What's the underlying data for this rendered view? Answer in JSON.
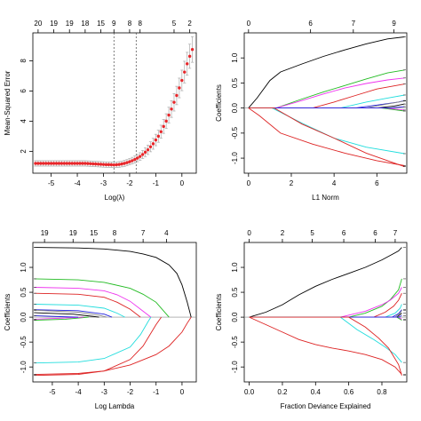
{
  "figure": {
    "background": "#ffffff"
  },
  "chart_data": [
    {
      "id": "cv",
      "type": "scatter",
      "xlabel": "Log(λ)",
      "ylabel": "Mean-Squared Error",
      "xlim": [
        -5.7,
        0.55
      ],
      "ylim": [
        0.55,
        9.85
      ],
      "xticks": [
        -5,
        -4,
        -3,
        -2,
        -1,
        0
      ],
      "yticks": [
        2,
        4,
        6,
        8
      ],
      "top_axis": {
        "positions": [
          -5.5,
          -4.9,
          -4.3,
          -3.7,
          -3.1,
          -2.6,
          -2.0,
          -1.6,
          -0.3,
          0.3
        ],
        "labels": [
          "20",
          "19",
          "19",
          "18",
          "15",
          "9",
          "8",
          "8",
          "5",
          "2"
        ]
      },
      "vlines": [
        -2.6,
        -1.75
      ],
      "point_color": "#e8262a",
      "errorbar_color": "#aaaaaa",
      "x": [
        -5.6,
        -5.5,
        -5.4,
        -5.3,
        -5.2,
        -5.1,
        -5.0,
        -4.9,
        -4.8,
        -4.7,
        -4.6,
        -4.5,
        -4.4,
        -4.3,
        -4.2,
        -4.1,
        -4.0,
        -3.9,
        -3.8,
        -3.7,
        -3.6,
        -3.5,
        -3.4,
        -3.3,
        -3.2,
        -3.1,
        -3.0,
        -2.9,
        -2.8,
        -2.7,
        -2.6,
        -2.5,
        -2.4,
        -2.3,
        -2.2,
        -2.1,
        -2.0,
        -1.9,
        -1.8,
        -1.7,
        -1.6,
        -1.5,
        -1.4,
        -1.3,
        -1.2,
        -1.1,
        -1.0,
        -0.9,
        -0.8,
        -0.7,
        -0.6,
        -0.5,
        -0.4,
        -0.3,
        -0.2,
        -0.1,
        0.0,
        0.1,
        0.2,
        0.3,
        0.4
      ],
      "y": [
        1.2,
        1.2,
        1.2,
        1.2,
        1.2,
        1.2,
        1.2,
        1.2,
        1.2,
        1.2,
        1.2,
        1.2,
        1.2,
        1.2,
        1.2,
        1.2,
        1.2,
        1.2,
        1.2,
        1.2,
        1.19,
        1.18,
        1.17,
        1.16,
        1.15,
        1.14,
        1.13,
        1.12,
        1.12,
        1.11,
        1.1,
        1.11,
        1.13,
        1.16,
        1.2,
        1.25,
        1.31,
        1.38,
        1.46,
        1.55,
        1.66,
        1.79,
        1.94,
        2.1,
        2.3,
        2.5,
        2.75,
        3.0,
        3.3,
        3.65,
        4.0,
        4.4,
        4.8,
        5.25,
        5.7,
        6.2,
        6.7,
        7.25,
        7.8,
        8.3,
        8.75
      ],
      "err": [
        0.18,
        0.18,
        0.18,
        0.18,
        0.18,
        0.18,
        0.18,
        0.18,
        0.18,
        0.18,
        0.18,
        0.18,
        0.18,
        0.18,
        0.18,
        0.18,
        0.18,
        0.18,
        0.18,
        0.18,
        0.18,
        0.18,
        0.18,
        0.18,
        0.18,
        0.18,
        0.18,
        0.18,
        0.18,
        0.18,
        0.18,
        0.18,
        0.19,
        0.19,
        0.2,
        0.2,
        0.21,
        0.22,
        0.23,
        0.24,
        0.25,
        0.27,
        0.29,
        0.31,
        0.33,
        0.36,
        0.38,
        0.4,
        0.43,
        0.46,
        0.49,
        0.52,
        0.55,
        0.58,
        0.61,
        0.65,
        0.68,
        0.72,
        0.76,
        0.8,
        0.85
      ]
    },
    {
      "id": "l1",
      "type": "line",
      "xlabel": "L1 Norm",
      "ylabel": "Coefficients",
      "xlim": [
        -0.2,
        7.4
      ],
      "ylim": [
        -1.3,
        1.5
      ],
      "xticks": [
        0,
        2,
        4,
        6
      ],
      "yticks": [
        -1.0,
        -0.5,
        0.0,
        0.5,
        1.0
      ],
      "ytick_labels": [
        "-1.0",
        "-0.5",
        "0.0",
        "0.5",
        "1.0"
      ],
      "top_axis": {
        "positions": [
          0,
          2.9,
          4.9,
          6.8
        ],
        "labels": [
          "0",
          "6",
          "7",
          "9"
        ]
      },
      "series": [
        {
          "color": "#000000",
          "x": [
            0,
            0.4,
            1.0,
            1.5,
            2.5,
            3.5,
            4.5,
            5.5,
            6.5,
            7.3
          ],
          "values": [
            0,
            0.2,
            0.55,
            0.72,
            0.88,
            1.03,
            1.16,
            1.28,
            1.38,
            1.42
          ]
        },
        {
          "color": "#22bb22",
          "x": [
            0,
            1.3,
            2.5,
            3.5,
            4.5,
            5.5,
            6.5,
            7.3
          ],
          "values": [
            0,
            0,
            0.18,
            0.32,
            0.45,
            0.58,
            0.7,
            0.76
          ]
        },
        {
          "color": "#ee33ee",
          "x": [
            0,
            1.3,
            2.5,
            3.5,
            4.5,
            5.5,
            6.5,
            7.3
          ],
          "values": [
            0,
            0,
            0.15,
            0.28,
            0.4,
            0.49,
            0.56,
            0.6
          ]
        },
        {
          "color": "#dd2222",
          "x": [
            0,
            3.0,
            4.0,
            5.0,
            6.0,
            7.3
          ],
          "values": [
            0,
            0,
            0.12,
            0.25,
            0.38,
            0.48
          ]
        },
        {
          "color": "#22dddd",
          "x": [
            0,
            4.3,
            5.5,
            6.5,
            7.3
          ],
          "values": [
            0,
            0,
            0.12,
            0.2,
            0.26
          ]
        },
        {
          "color": "#2222dd",
          "x": [
            0,
            5.0,
            6.0,
            7.0,
            7.3
          ],
          "values": [
            0,
            0,
            0.06,
            0.12,
            0.15
          ]
        },
        {
          "color": "#888888",
          "x": [
            0,
            5.5,
            6.5,
            7.3
          ],
          "values": [
            0,
            0,
            0.08,
            0.14
          ]
        },
        {
          "color": "#000000",
          "x": [
            0,
            6.0,
            6.8,
            7.3
          ],
          "values": [
            0,
            0,
            0.04,
            0.08
          ]
        },
        {
          "color": "#22bb22",
          "x": [
            0,
            6.2,
            7.3
          ],
          "values": [
            0,
            0,
            -0.06
          ]
        },
        {
          "color": "#ee33ee",
          "x": [
            0,
            6.4,
            7.3
          ],
          "values": [
            0,
            0,
            -0.04
          ]
        },
        {
          "color": "#2222dd",
          "x": [
            0,
            6.6,
            7.3
          ],
          "values": [
            0,
            0,
            0.03
          ]
        },
        {
          "color": "#22dddd",
          "x": [
            0,
            1.1,
            2.5,
            4.0,
            5.5,
            7.3
          ],
          "values": [
            0,
            0,
            -0.3,
            -0.6,
            -0.78,
            -0.91
          ]
        },
        {
          "color": "#dd2222",
          "x": [
            0,
            1.2,
            2.5,
            4.0,
            5.5,
            7.3
          ],
          "values": [
            0,
            0,
            -0.32,
            -0.6,
            -0.9,
            -1.17
          ]
        },
        {
          "color": "#dd2222",
          "x": [
            0,
            0.5,
            1.5,
            3.0,
            4.5,
            6.0,
            7.3
          ],
          "values": [
            0,
            -0.15,
            -0.5,
            -0.72,
            -0.9,
            -1.05,
            -1.15
          ]
        }
      ]
    },
    {
      "id": "lambda",
      "type": "line",
      "xlabel": "Log Lambda",
      "ylabel": "Coefficients",
      "xlim": [
        -5.75,
        0.55
      ],
      "ylim": [
        -1.3,
        1.5
      ],
      "xticks": [
        -5,
        -4,
        -3,
        -2,
        -1,
        0
      ],
      "yticks": [
        -1.0,
        -0.5,
        0.0,
        0.5,
        1.0
      ],
      "ytick_labels": [
        "-1.0",
        "-0.5",
        "0.0",
        "0.5",
        "1.0"
      ],
      "top_axis": {
        "positions": [
          -5.3,
          -4.2,
          -3.4,
          -2.6,
          -1.5,
          -0.6
        ],
        "labels": [
          "19",
          "19",
          "15",
          "8",
          "7",
          "4"
        ]
      },
      "series": [
        {
          "color": "#000000",
          "x": [
            -5.7,
            -4,
            -3,
            -2,
            -1.5,
            -1,
            -0.5,
            -0.2,
            0,
            0.2,
            0.35
          ],
          "values": [
            1.4,
            1.39,
            1.37,
            1.32,
            1.27,
            1.2,
            1.05,
            0.88,
            0.65,
            0.3,
            0
          ]
        },
        {
          "color": "#22bb22",
          "x": [
            -5.7,
            -4,
            -3,
            -2,
            -1.5,
            -1,
            -0.7,
            -0.5
          ],
          "values": [
            0.77,
            0.75,
            0.7,
            0.58,
            0.46,
            0.3,
            0.12,
            0
          ]
        },
        {
          "color": "#ee33ee",
          "x": [
            -5.7,
            -4,
            -3,
            -2.5,
            -2,
            -1.5,
            -1.2
          ],
          "values": [
            0.6,
            0.58,
            0.53,
            0.45,
            0.32,
            0.12,
            0
          ]
        },
        {
          "color": "#dd2222",
          "x": [
            -5.7,
            -4,
            -3,
            -2.5,
            -2,
            -1.6
          ],
          "values": [
            0.48,
            0.46,
            0.4,
            0.3,
            0.16,
            0
          ]
        },
        {
          "color": "#22dddd",
          "x": [
            -5.7,
            -4,
            -3,
            -2.5,
            -2.2
          ],
          "values": [
            0.26,
            0.24,
            0.18,
            0.08,
            0
          ]
        },
        {
          "color": "#2222dd",
          "x": [
            -5.7,
            -4,
            -3,
            -2.7
          ],
          "values": [
            0.15,
            0.13,
            0.06,
            0
          ]
        },
        {
          "color": "#888888",
          "x": [
            -5.7,
            -4,
            -3.2,
            -2.9
          ],
          "values": [
            0.14,
            0.1,
            0.04,
            0
          ]
        },
        {
          "color": "#000000",
          "x": [
            -5.7,
            -4.2,
            -3.5,
            -3.2
          ],
          "values": [
            0.09,
            0.06,
            0.02,
            0
          ]
        },
        {
          "color": "#22bb22",
          "x": [
            -5.7,
            -4.5,
            -3.6
          ],
          "values": [
            -0.06,
            -0.04,
            0
          ]
        },
        {
          "color": "#ee33ee",
          "x": [
            -5.7,
            -4.6,
            -3.8
          ],
          "values": [
            -0.04,
            -0.02,
            0
          ]
        },
        {
          "color": "#2222dd",
          "x": [
            -5.7,
            -4.7,
            -4.0
          ],
          "values": [
            0.03,
            0.01,
            0
          ]
        },
        {
          "color": "#22dddd",
          "x": [
            -5.7,
            -4,
            -3,
            -2,
            -1.6,
            -1.3,
            -1.2
          ],
          "values": [
            -0.92,
            -0.9,
            -0.83,
            -0.6,
            -0.35,
            -0.08,
            0
          ]
        },
        {
          "color": "#dd2222",
          "x": [
            -5.7,
            -4,
            -3,
            -2,
            -1.5,
            -1.0,
            -0.8
          ],
          "values": [
            -1.17,
            -1.15,
            -1.08,
            -0.85,
            -0.58,
            -0.15,
            0
          ]
        },
        {
          "color": "#dd2222",
          "x": [
            -5.7,
            -4,
            -3,
            -2,
            -1,
            -0.5,
            0,
            0.2,
            0.35
          ],
          "values": [
            -1.15,
            -1.13,
            -1.08,
            -0.96,
            -0.75,
            -0.58,
            -0.3,
            -0.12,
            0
          ]
        }
      ]
    },
    {
      "id": "dev",
      "type": "line",
      "xlabel": "Fraction Deviance Explained",
      "ylabel": "Coefficients",
      "xlim": [
        -0.03,
        0.95
      ],
      "ylim": [
        -1.3,
        1.5
      ],
      "xticks": [
        0.0,
        0.2,
        0.4,
        0.6,
        0.8
      ],
      "xtick_labels": [
        "0.0",
        "0.2",
        "0.4",
        "0.6",
        "0.8"
      ],
      "yticks": [
        -1.0,
        -0.5,
        0.0,
        0.5,
        1.0
      ],
      "ytick_labels": [
        "-1.0",
        "-0.5",
        "0.0",
        "0.5",
        "1.0"
      ],
      "top_axis": {
        "positions": [
          0.0,
          0.2,
          0.38,
          0.57,
          0.76,
          0.88
        ],
        "labels": [
          "0",
          "2",
          "5",
          "6",
          "6",
          "7"
        ]
      },
      "series": [
        {
          "color": "#000000",
          "x": [
            0,
            0.1,
            0.2,
            0.3,
            0.4,
            0.5,
            0.6,
            0.7,
            0.8,
            0.85,
            0.9,
            0.92
          ],
          "values": [
            0,
            0.1,
            0.25,
            0.45,
            0.62,
            0.76,
            0.88,
            1.0,
            1.15,
            1.24,
            1.33,
            1.4
          ]
        },
        {
          "color": "#22bb22",
          "x": [
            0,
            0.6,
            0.7,
            0.8,
            0.85,
            0.9,
            0.92
          ],
          "values": [
            0,
            0,
            0.08,
            0.22,
            0.35,
            0.55,
            0.77
          ]
        },
        {
          "color": "#ee33ee",
          "x": [
            0,
            0.55,
            0.7,
            0.8,
            0.85,
            0.9,
            0.92
          ],
          "values": [
            0,
            0,
            0.12,
            0.25,
            0.34,
            0.48,
            0.6
          ]
        },
        {
          "color": "#dd2222",
          "x": [
            0,
            0.75,
            0.82,
            0.87,
            0.9,
            0.92
          ],
          "values": [
            0,
            0,
            0.1,
            0.22,
            0.34,
            0.48
          ]
        },
        {
          "color": "#22dddd",
          "x": [
            0,
            0.82,
            0.88,
            0.91,
            0.92
          ],
          "values": [
            0,
            0,
            0.08,
            0.18,
            0.26
          ]
        },
        {
          "color": "#2222dd",
          "x": [
            0,
            0.86,
            0.9,
            0.92
          ],
          "values": [
            0,
            0,
            0.07,
            0.15
          ]
        },
        {
          "color": "#888888",
          "x": [
            0,
            0.88,
            0.91,
            0.92
          ],
          "values": [
            0,
            0,
            0.08,
            0.14
          ]
        },
        {
          "color": "#000000",
          "x": [
            0,
            0.89,
            0.92
          ],
          "values": [
            0,
            0,
            0.08
          ]
        },
        {
          "color": "#22bb22",
          "x": [
            0,
            0.89,
            0.92
          ],
          "values": [
            0,
            0,
            -0.06
          ]
        },
        {
          "color": "#ee33ee",
          "x": [
            0,
            0.9,
            0.92
          ],
          "values": [
            0,
            0,
            -0.04
          ]
        },
        {
          "color": "#2222dd",
          "x": [
            0,
            0.9,
            0.92
          ],
          "values": [
            0,
            0,
            0.03
          ]
        },
        {
          "color": "#22dddd",
          "x": [
            0,
            0.55,
            0.65,
            0.75,
            0.82,
            0.88,
            0.92
          ],
          "values": [
            0,
            0,
            -0.25,
            -0.45,
            -0.6,
            -0.75,
            -0.91
          ]
        },
        {
          "color": "#dd2222",
          "x": [
            0,
            0.6,
            0.7,
            0.78,
            0.84,
            0.9,
            0.92
          ],
          "values": [
            0,
            0,
            -0.2,
            -0.42,
            -0.62,
            -0.95,
            -1.17
          ]
        },
        {
          "color": "#dd2222",
          "x": [
            0,
            0.1,
            0.2,
            0.3,
            0.4,
            0.5,
            0.6,
            0.7,
            0.8,
            0.88,
            0.92
          ],
          "values": [
            0,
            -0.15,
            -0.3,
            -0.45,
            -0.55,
            -0.62,
            -0.68,
            -0.75,
            -0.85,
            -1.0,
            -1.15
          ]
        }
      ]
    }
  ]
}
